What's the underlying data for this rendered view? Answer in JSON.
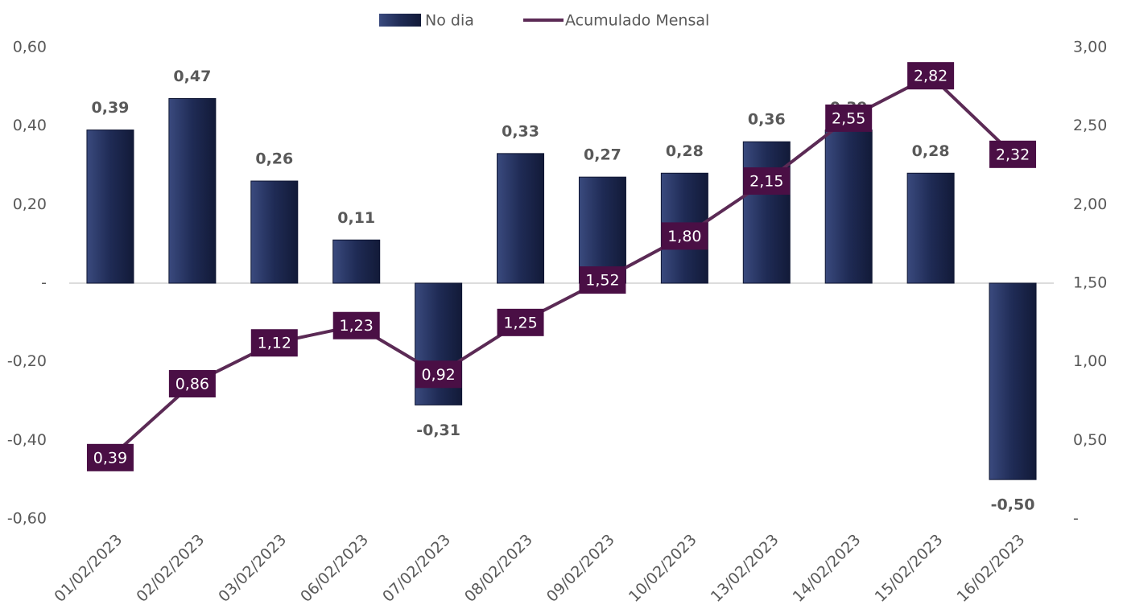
{
  "chart_data": {
    "type": "bar",
    "categories": [
      "01/02/2023",
      "02/02/2023",
      "03/02/2023",
      "06/02/2023",
      "07/02/2023",
      "08/02/2023",
      "09/02/2023",
      "10/02/2023",
      "13/02/2023",
      "14/02/2023",
      "15/02/2023",
      "16/02/2023"
    ],
    "series": [
      {
        "name": "No dia",
        "type": "bar",
        "color": "#1f2b55",
        "values": [
          0.39,
          0.47,
          0.26,
          0.11,
          -0.31,
          0.33,
          0.27,
          0.28,
          0.36,
          0.39,
          0.28,
          -0.5
        ],
        "value_labels": [
          "0,39",
          "0,47",
          "0,26",
          "0,11",
          "-0,31",
          "0,33",
          "0,27",
          "0,28",
          "0,36",
          "0,39",
          "0,28",
          "-0,50"
        ]
      },
      {
        "name": "Acumulado Mensal",
        "type": "line",
        "axis": "y2",
        "color": "#5b2a55",
        "values": [
          0.39,
          0.86,
          1.12,
          1.23,
          0.92,
          1.25,
          1.52,
          1.8,
          2.15,
          2.55,
          2.82,
          2.32
        ],
        "value_labels": [
          "0,39",
          "0,86",
          "1,12",
          "1,23",
          "0,92",
          "1,25",
          "1,52",
          "1,80",
          "2,15",
          "2,55",
          "2,82",
          "2,32"
        ]
      }
    ],
    "ylim": [
      -0.6,
      0.6
    ],
    "yticks": [
      {
        "value": -0.6,
        "label": "-0,60"
      },
      {
        "value": -0.4,
        "label": "-0,40"
      },
      {
        "value": -0.2,
        "label": "-0,20"
      },
      {
        "value": 0,
        "label": "-"
      },
      {
        "value": 0.2,
        "label": "0,20"
      },
      {
        "value": 0.4,
        "label": "0,40"
      },
      {
        "value": 0.6,
        "label": "0,60"
      }
    ],
    "y2lim": [
      0,
      3
    ],
    "y2ticks": [
      {
        "value": 0,
        "label": "-"
      },
      {
        "value": 0.5,
        "label": "0,50"
      },
      {
        "value": 1,
        "label": "1,00"
      },
      {
        "value": 1.5,
        "label": "1,50"
      },
      {
        "value": 2,
        "label": "2,00"
      },
      {
        "value": 2.5,
        "label": "2,50"
      },
      {
        "value": 3,
        "label": "3,00"
      }
    ],
    "legend": "top",
    "grid": false
  }
}
